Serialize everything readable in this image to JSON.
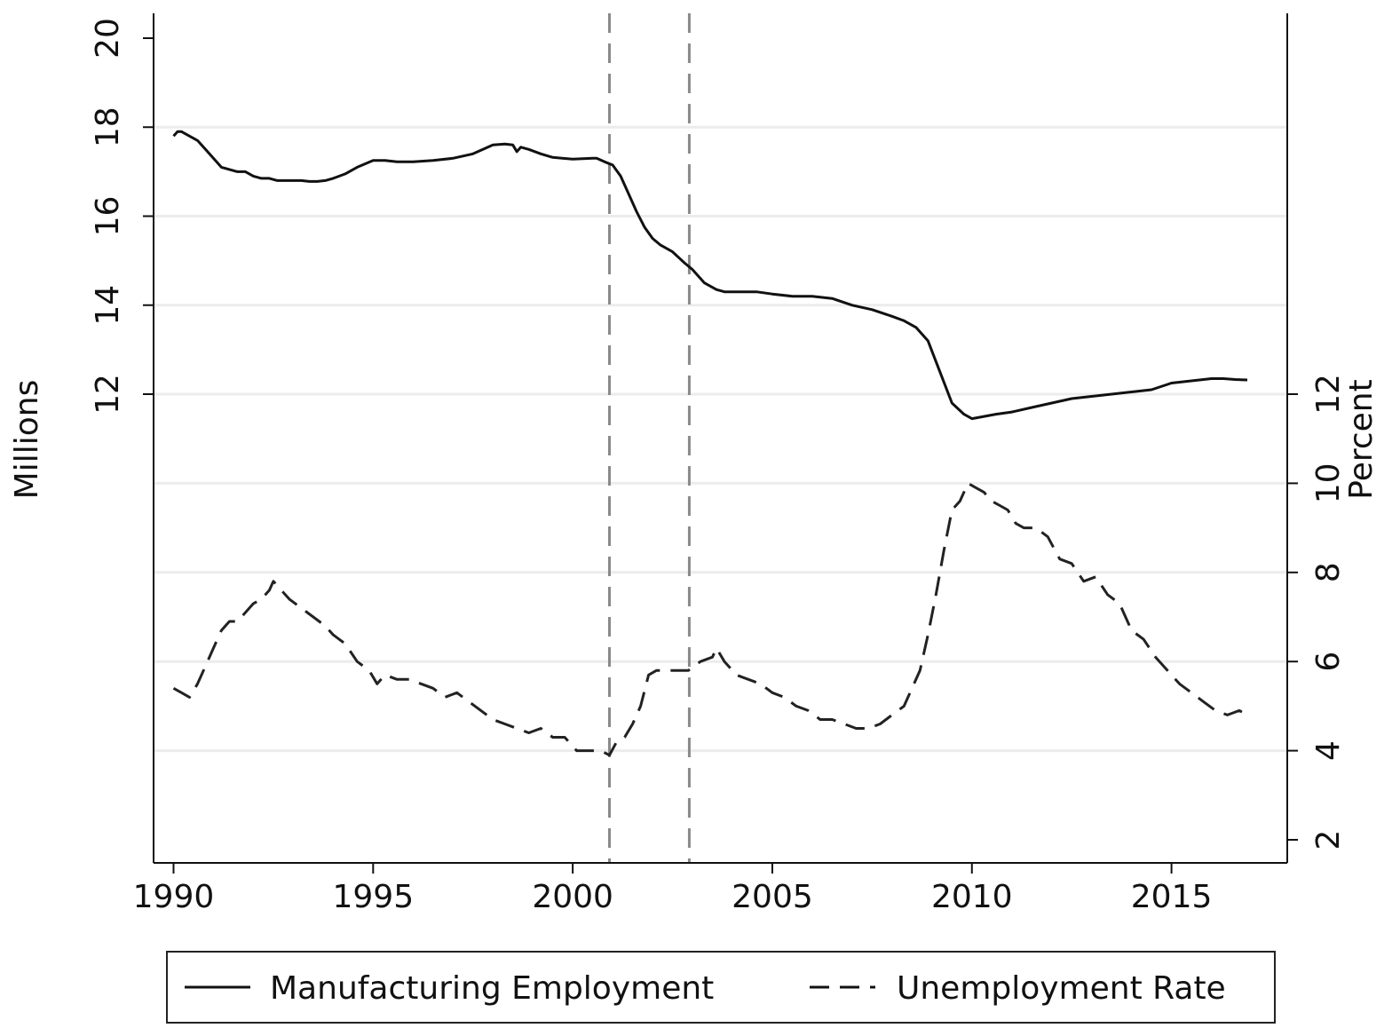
{
  "chart_data": {
    "type": "line",
    "title": "",
    "xlabel": "",
    "ylabel_left": "Millions",
    "ylabel_right": "Percent",
    "xlim": [
      1989.5,
      2017.9
    ],
    "x_ticks": [
      1990,
      1995,
      2000,
      2005,
      2010,
      2015
    ],
    "ylim_left": [
      1.0,
      20.5
    ],
    "ylim_left_axis": [
      1.0,
      20.5
    ],
    "y_ticks_left": [
      12,
      14,
      16,
      18,
      20
    ],
    "ylim_right": [
      1.5,
      20.5
    ],
    "y_ticks_right": [
      2,
      4,
      6,
      8,
      10,
      12
    ],
    "grid": true,
    "legend_position": "bottom",
    "reference_lines_x": [
      2000.92,
      2002.92
    ],
    "series": [
      {
        "name": "Manufacturing Employment",
        "axis": "left",
        "style": "solid",
        "x": [
          1990.0,
          1990.1,
          1990.2,
          1990.4,
          1990.6,
          1990.8,
          1991.0,
          1991.2,
          1991.4,
          1991.6,
          1991.8,
          1992.0,
          1992.2,
          1992.4,
          1992.6,
          1992.8,
          1993.0,
          1993.2,
          1993.4,
          1993.6,
          1993.8,
          1994.0,
          1994.3,
          1994.6,
          1995.0,
          1995.3,
          1995.6,
          1996.0,
          1996.5,
          1997.0,
          1997.5,
          1998.0,
          1998.3,
          1998.5,
          1998.6,
          1998.7,
          1998.9,
          1999.2,
          1999.5,
          2000.0,
          2000.5,
          2000.6,
          2000.8,
          2001.0,
          2001.2,
          2001.4,
          2001.6,
          2001.8,
          2002.0,
          2002.2,
          2002.5,
          2002.8,
          2003.0,
          2003.3,
          2003.6,
          2003.8,
          2004.0,
          2004.3,
          2004.6,
          2005.0,
          2005.5,
          2006.0,
          2006.5,
          2007.0,
          2007.5,
          2008.0,
          2008.3,
          2008.6,
          2008.9,
          2009.2,
          2009.5,
          2009.8,
          2010.0,
          2010.3,
          2010.6,
          2011.0,
          2011.5,
          2012.0,
          2012.5,
          2013.0,
          2013.5,
          2014.0,
          2014.5,
          2015.0,
          2015.5,
          2016.0,
          2016.3,
          2016.6,
          2016.9
        ],
        "y": [
          17.8,
          17.9,
          17.9,
          17.8,
          17.7,
          17.5,
          17.3,
          17.1,
          17.05,
          17.0,
          17.0,
          16.9,
          16.85,
          16.85,
          16.8,
          16.8,
          16.8,
          16.8,
          16.78,
          16.78,
          16.8,
          16.85,
          16.95,
          17.1,
          17.25,
          17.25,
          17.22,
          17.22,
          17.25,
          17.3,
          17.4,
          17.6,
          17.62,
          17.6,
          17.45,
          17.55,
          17.5,
          17.4,
          17.32,
          17.28,
          17.3,
          17.3,
          17.22,
          17.15,
          16.9,
          16.5,
          16.1,
          15.75,
          15.5,
          15.35,
          15.2,
          14.95,
          14.8,
          14.5,
          14.35,
          14.3,
          14.3,
          14.3,
          14.3,
          14.25,
          14.2,
          14.2,
          14.15,
          14.0,
          13.9,
          13.75,
          13.65,
          13.5,
          13.2,
          12.5,
          11.8,
          11.55,
          11.45,
          11.5,
          11.55,
          11.6,
          11.7,
          11.8,
          11.9,
          11.95,
          12.0,
          12.05,
          12.1,
          12.25,
          12.3,
          12.35,
          12.35,
          12.33,
          12.32
        ]
      },
      {
        "name": "Unemployment Rate",
        "axis": "right",
        "style": "dashed",
        "x": [
          1990.0,
          1990.2,
          1990.4,
          1990.6,
          1990.8,
          1991.0,
          1991.2,
          1991.4,
          1991.6,
          1991.8,
          1992.0,
          1992.2,
          1992.4,
          1992.5,
          1992.7,
          1992.9,
          1993.2,
          1993.5,
          1993.8,
          1994.0,
          1994.3,
          1994.6,
          1994.9,
          1995.1,
          1995.3,
          1995.6,
          1995.9,
          1996.2,
          1996.5,
          1996.8,
          1997.1,
          1997.4,
          1997.7,
          1998.0,
          1998.3,
          1998.6,
          1998.9,
          1999.2,
          1999.5,
          1999.8,
          2000.1,
          2000.4,
          2000.7,
          2000.92,
          2001.1,
          2001.3,
          2001.5,
          2001.7,
          2001.9,
          2002.1,
          2002.3,
          2002.6,
          2002.9,
          2003.2,
          2003.5,
          2003.6,
          2003.8,
          2004.1,
          2004.4,
          2004.7,
          2005.0,
          2005.3,
          2005.6,
          2005.9,
          2006.2,
          2006.5,
          2006.8,
          2007.1,
          2007.4,
          2007.7,
          2008.0,
          2008.3,
          2008.5,
          2008.7,
          2008.9,
          2009.1,
          2009.3,
          2009.5,
          2009.7,
          2009.9,
          2010.1,
          2010.3,
          2010.5,
          2010.7,
          2010.9,
          2011.1,
          2011.3,
          2011.6,
          2011.9,
          2012.2,
          2012.5,
          2012.8,
          2013.1,
          2013.4,
          2013.7,
          2014.0,
          2014.3,
          2014.6,
          2014.9,
          2015.2,
          2015.5,
          2015.8,
          2016.1,
          2016.4,
          2016.7,
          2016.9
        ],
        "y": [
          5.4,
          5.3,
          5.2,
          5.5,
          5.9,
          6.3,
          6.7,
          6.9,
          6.9,
          7.1,
          7.3,
          7.4,
          7.6,
          7.8,
          7.6,
          7.4,
          7.2,
          7.0,
          6.8,
          6.6,
          6.4,
          6.0,
          5.8,
          5.5,
          5.7,
          5.6,
          5.6,
          5.5,
          5.4,
          5.2,
          5.3,
          5.1,
          4.9,
          4.7,
          4.6,
          4.5,
          4.4,
          4.5,
          4.3,
          4.3,
          4.0,
          4.0,
          4.0,
          3.9,
          4.2,
          4.3,
          4.6,
          5.0,
          5.7,
          5.8,
          5.8,
          5.8,
          5.8,
          6.0,
          6.1,
          6.3,
          6.0,
          5.7,
          5.6,
          5.5,
          5.3,
          5.2,
          5.0,
          4.9,
          4.7,
          4.7,
          4.6,
          4.5,
          4.5,
          4.6,
          4.8,
          5.0,
          5.4,
          5.8,
          6.6,
          7.5,
          8.5,
          9.4,
          9.6,
          10.0,
          9.9,
          9.8,
          9.6,
          9.5,
          9.4,
          9.1,
          9.0,
          9.0,
          8.8,
          8.3,
          8.2,
          7.8,
          7.9,
          7.5,
          7.3,
          6.7,
          6.5,
          6.1,
          5.8,
          5.5,
          5.3,
          5.1,
          4.9,
          4.8,
          4.9,
          4.8
        ]
      }
    ]
  }
}
